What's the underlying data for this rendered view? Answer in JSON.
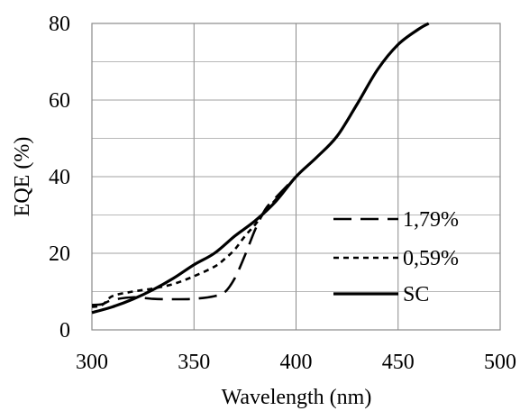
{
  "chart_data": {
    "type": "line",
    "title": "",
    "xlabel": "Wavelength (nm)",
    "ylabel": "EQE (%)",
    "xlim": [
      300,
      500
    ],
    "ylim": [
      0,
      80
    ],
    "x_ticks": [
      300,
      350,
      400,
      450,
      500
    ],
    "y_ticks": [
      0,
      20,
      40,
      60,
      80
    ],
    "x_ticklabels": [
      "300",
      "350",
      "400",
      "450",
      "500"
    ],
    "y_ticklabels": [
      "0",
      "20",
      "40",
      "60",
      "80"
    ],
    "grid": true,
    "legend_position": "right",
    "series": [
      {
        "name": "1,79%",
        "style": "long-dash",
        "color": "#000000",
        "points": [
          [
            300,
            6.5
          ],
          [
            305,
            6.7
          ],
          [
            310,
            7.8
          ],
          [
            320,
            8.5
          ],
          [
            330,
            8.1
          ],
          [
            340,
            8.0
          ],
          [
            350,
            8.1
          ],
          [
            360,
            8.8
          ],
          [
            365,
            9.8
          ],
          [
            370,
            13.5
          ],
          [
            375,
            19.5
          ],
          [
            380,
            26.2
          ],
          [
            385,
            31.5
          ],
          [
            390,
            34.5
          ],
          [
            400,
            40.0
          ]
        ]
      },
      {
        "name": "0,59%",
        "style": "short-dash",
        "color": "#000000",
        "points": [
          [
            300,
            6.0
          ],
          [
            305,
            6.5
          ],
          [
            310,
            8.8
          ],
          [
            320,
            10.0
          ],
          [
            330,
            10.8
          ],
          [
            340,
            12.0
          ],
          [
            350,
            14.0
          ],
          [
            360,
            16.5
          ],
          [
            365,
            18.5
          ],
          [
            370,
            21.0
          ],
          [
            375,
            24.5
          ],
          [
            380,
            27.5
          ],
          [
            385,
            31.0
          ],
          [
            390,
            34.0
          ],
          [
            400,
            40.0
          ]
        ]
      },
      {
        "name": "SC",
        "style": "solid",
        "color": "#000000",
        "points": [
          [
            300,
            4.5
          ],
          [
            310,
            6.0
          ],
          [
            320,
            8.0
          ],
          [
            330,
            10.5
          ],
          [
            340,
            13.5
          ],
          [
            350,
            17.0
          ],
          [
            360,
            20.0
          ],
          [
            370,
            24.5
          ],
          [
            380,
            28.5
          ],
          [
            390,
            33.5
          ],
          [
            400,
            40.0
          ],
          [
            410,
            45.0
          ],
          [
            420,
            50.5
          ],
          [
            430,
            59.0
          ],
          [
            440,
            68.0
          ],
          [
            450,
            74.5
          ],
          [
            460,
            78.5
          ],
          [
            465,
            80.0
          ]
        ]
      }
    ]
  }
}
